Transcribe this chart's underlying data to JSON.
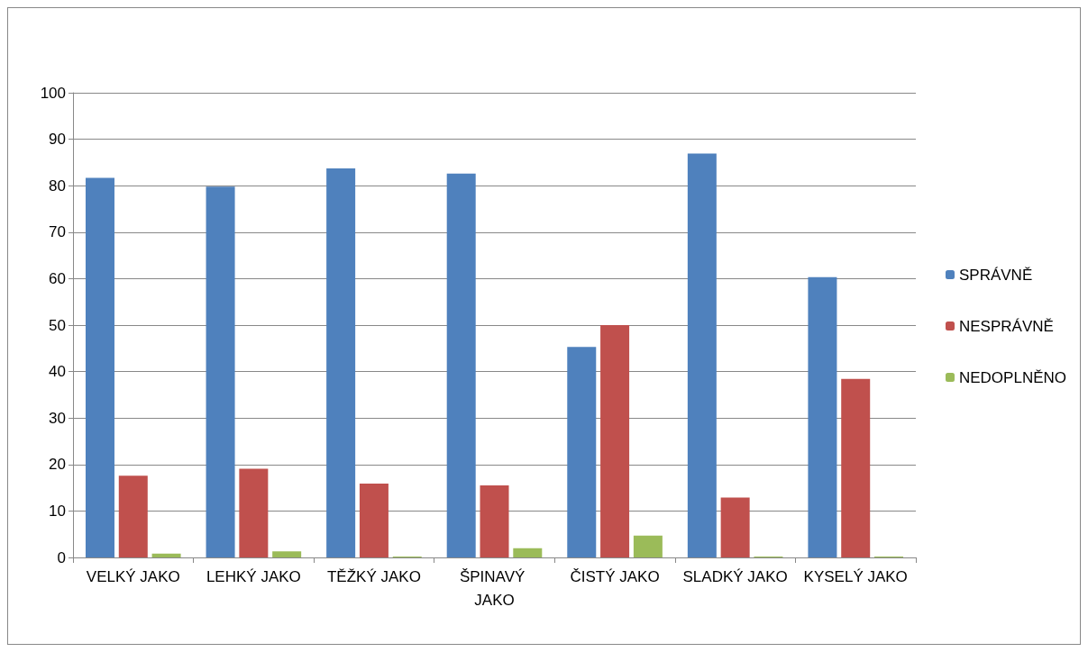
{
  "chart_data": {
    "type": "bar",
    "categories": [
      "VELKÝ JAKO",
      "LEHKÝ JAKO",
      "TĚŽKÝ JAKO",
      "ŠPINAVÝ JAKO",
      "ČISTÝ JAKO",
      "SLADKÝ JAKO",
      "KYSELÝ JAKO"
    ],
    "series": [
      {
        "name": "SPRÁVNĚ",
        "color": "#4f81bd",
        "values": [
          81.7,
          79.8,
          83.7,
          82.6,
          45.3,
          86.9,
          60.3
        ]
      },
      {
        "name": "NESPRÁVNĚ",
        "color": "#c0504d",
        "values": [
          17.6,
          19.1,
          15.9,
          15.5,
          50,
          12.9,
          38.4
        ]
      },
      {
        "name": "NEDOPLNĚNO",
        "color": "#9bbb59",
        "values": [
          0.8,
          1.3,
          0.2,
          2,
          4.7,
          0.2,
          0.2
        ]
      }
    ],
    "ylim": [
      0,
      100
    ],
    "yticks": [
      0,
      10,
      20,
      30,
      40,
      50,
      60,
      70,
      80,
      90,
      100
    ],
    "grid": "y",
    "legend": "right"
  }
}
